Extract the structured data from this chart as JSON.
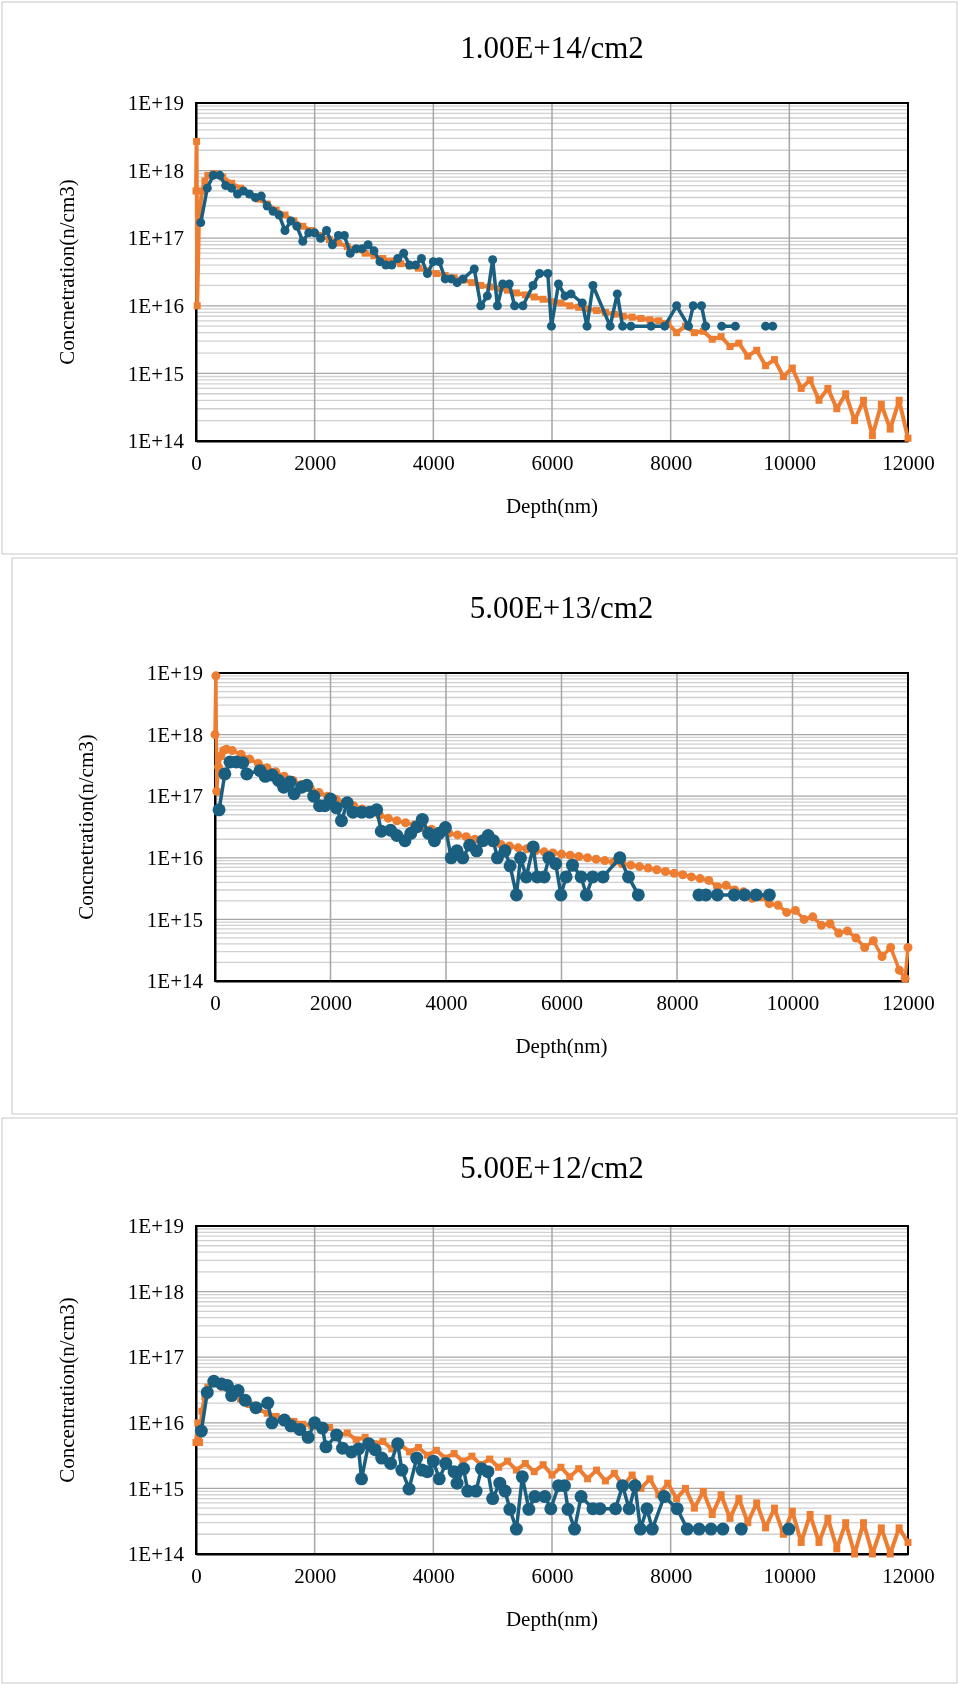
{
  "chart_data": [
    {
      "type": "line",
      "title": "1.00E+14/cm2",
      "xlabel": "Depth(nm)",
      "ylabel": "Concnetration(n/cm3)",
      "log": true,
      "grid": true,
      "xlim": [
        0,
        12000
      ],
      "xticks": [
        0,
        2000,
        4000,
        6000,
        8000,
        10000,
        12000
      ],
      "ylim": [
        100000000000000.0,
        1e+19
      ],
      "yticks": [
        {
          "value": 100000000000000.0,
          "label": "1E+14"
        },
        {
          "value": 1000000000000000.0,
          "label": "1E+15"
        },
        {
          "value": 1e+16,
          "label": "1E+16"
        },
        {
          "value": 1e+17,
          "label": "1E+17"
        },
        {
          "value": 1e+18,
          "label": "1E+18"
        },
        {
          "value": 1e+19,
          "label": "1E+19"
        }
      ],
      "series": [
        {
          "color": "#ed7d31",
          "marker": "square",
          "x": [
            0,
            10,
            20,
            50,
            100,
            150,
            200,
            300,
            450,
            600,
            750,
            900,
            1050,
            1200,
            1350,
            1500,
            1650,
            1800,
            1950,
            2100,
            2250,
            2400,
            2550,
            2700,
            2850,
            3000,
            3150,
            3300,
            3450,
            3600,
            3750,
            3900,
            4050,
            4200,
            4350,
            4500,
            4650,
            4800,
            4950,
            5100,
            5250,
            5400,
            5550,
            5700,
            5850,
            6000,
            6150,
            6300,
            6450,
            6600,
            6750,
            6900,
            7050,
            7200,
            7350,
            7500,
            7650,
            7800,
            7950,
            8100,
            8250,
            8400,
            8550,
            8700,
            8850,
            9000,
            9150,
            9300,
            9450,
            9600,
            9750,
            9900,
            10050,
            10200,
            10350,
            10500,
            10650,
            10800,
            10950,
            11100,
            11250,
            11400,
            11550,
            11700,
            11850,
            12000
          ],
          "values": [
            5e+17,
            2.7e+18,
            1e+16,
            2e+17,
            5e+17,
            7e+17,
            8.5e+17,
            9e+17,
            8e+17,
            6.5e+17,
            5.5e+17,
            4.5e+17,
            3.8e+17,
            3.2e+17,
            2.6e+17,
            2.2e+17,
            1.8e+17,
            1.5e+17,
            1.3e+17,
            1.1e+17,
            9.5e+16,
            8.5e+16,
            7.5e+16,
            6.8e+16,
            6e+16,
            5.5e+16,
            5e+16,
            4.6e+16,
            4.2e+16,
            3.9e+16,
            3.6e+16,
            3.3e+16,
            3e+16,
            2.8e+16,
            2.6e+16,
            2.4e+16,
            2.2e+16,
            2e+16,
            1.9e+16,
            1.8e+16,
            1.7e+16,
            1.55e+16,
            1.45e+16,
            1.35e+16,
            1.25e+16,
            1.15e+16,
            1.1e+16,
            1e+16,
            9500000000000000.0,
            9000000000000000.0,
            8500000000000000.0,
            8000000000000000.0,
            7500000000000000.0,
            7000000000000000.0,
            6800000000000000.0,
            6500000000000000.0,
            6200000000000000.0,
            6000000000000000.0,
            5500000000000000.0,
            4000000000000000.0,
            5000000000000000.0,
            4000000000000000.0,
            4200000000000000.0,
            3200000000000000.0,
            3500000000000000.0,
            2500000000000000.0,
            2800000000000000.0,
            1800000000000000.0,
            2200000000000000.0,
            1300000000000000.0,
            1600000000000000.0,
            900000000000000.0,
            1200000000000000.0,
            600000000000000.0,
            800000000000000.0,
            400000000000000.0,
            600000000000000.0,
            300000000000000.0,
            500000000000000.0,
            200000000000000.0,
            400000000000000.0,
            120000000000000.0,
            350000000000000.0,
            150000000000000.0,
            400000000000000.0,
            110000000000000.0
          ]
        },
        {
          "color": "#1a5f80",
          "marker": "circle",
          "x": [
            80,
            190,
            290,
            400,
            500,
            600,
            700,
            800,
            900,
            1000,
            1100,
            1200,
            1300,
            1400,
            1500,
            1600,
            1700,
            1800,
            1900,
            2000,
            2100,
            2200,
            2300,
            2400,
            2500,
            2600,
            2700,
            2800,
            2900,
            3000,
            3100,
            3200,
            3300,
            3400,
            3500,
            3600,
            3700,
            3800,
            3900,
            4000,
            4100,
            4200,
            4300,
            4400,
            4500,
            4690,
            4800,
            4910,
            5000,
            5080,
            5170,
            5280,
            5370,
            5510,
            5680,
            5790,
            5930,
            5990,
            6110,
            6220,
            6320,
            6510,
            6590,
            6690,
            6980,
            7100,
            7190,
            7330,
            7670,
            7900,
            8100,
            8300,
            8380,
            8520,
            8590,
            8700,
            8860,
            9090,
            9300,
            9600,
            9720
          ],
          "values": [
            1.7e+17,
            5.5e+17,
            8.5e+17,
            8.5e+17,
            6e+17,
            5.5e+17,
            4.5e+17,
            5e+17,
            4.5e+17,
            4e+17,
            4.2e+17,
            3e+17,
            2.5e+17,
            2.2e+17,
            1.3e+17,
            1.8e+17,
            1.5e+17,
            9e+16,
            1.2e+17,
            1.2e+17,
            1e+17,
            1.3e+17,
            8e+16,
            1.1e+17,
            1.1e+17,
            6e+16,
            7e+16,
            7e+16,
            8e+16,
            6.5e+16,
            4.5e+16,
            4e+16,
            4e+16,
            5e+16,
            6e+16,
            4e+16,
            4e+16,
            5e+16,
            3e+16,
            4.5e+16,
            4.5e+16,
            2.5e+16,
            2.5e+16,
            2.2e+16,
            2.5e+16,
            3.5e+16,
            1e+16,
            1.4e+16,
            4.8e+16,
            1e+16,
            2.1e+16,
            2.1e+16,
            1e+16,
            1e+16,
            2e+16,
            3e+16,
            3e+16,
            5000000000000000.0,
            2.1e+16,
            1.4e+16,
            1.5e+16,
            1.1e+16,
            5000000000000000.0,
            2e+16,
            5000000000000000.0,
            1.5e+16,
            5000000000000000.0,
            5000000000000000.0,
            5000000000000000.0,
            5000000000000000.0,
            1e+16,
            5000000000000000.0,
            1e+16,
            1e+16,
            5000000000000000.0,
            null,
            5000000000000000.0,
            5000000000000000.0,
            null,
            5000000000000000.0,
            5000000000000000.0
          ]
        }
      ]
    },
    {
      "type": "line",
      "title": "5.00E+13/cm2",
      "xlabel": "Depth(nm)",
      "ylabel": "Concnetration(n/cm3)",
      "log": true,
      "grid": true,
      "xlim": [
        0,
        12000
      ],
      "xticks": [
        0,
        2000,
        4000,
        6000,
        8000,
        10000,
        12000
      ],
      "ylim": [
        100000000000000.0,
        1e+19
      ],
      "yticks": [
        {
          "value": 100000000000000.0,
          "label": "1E+14"
        },
        {
          "value": 1000000000000000.0,
          "label": "1E+15"
        },
        {
          "value": 1e+16,
          "label": "1E+16"
        },
        {
          "value": 1e+17,
          "label": "1E+17"
        },
        {
          "value": 1e+18,
          "label": "1E+18"
        },
        {
          "value": 1e+19,
          "label": "1E+19"
        }
      ],
      "series": [
        {
          "color": "#ed7d31",
          "marker": "circle",
          "x": [
            0,
            15,
            30,
            60,
            100,
            150,
            200,
            300,
            450,
            600,
            750,
            900,
            1050,
            1200,
            1350,
            1500,
            1650,
            1800,
            1950,
            2100,
            2250,
            2400,
            2550,
            2700,
            2850,
            3000,
            3150,
            3300,
            3450,
            3600,
            3750,
            3900,
            4050,
            4200,
            4350,
            4500,
            4650,
            4800,
            4950,
            5100,
            5250,
            5400,
            5550,
            5700,
            5850,
            6000,
            6150,
            6300,
            6450,
            6600,
            6750,
            6900,
            7050,
            7200,
            7350,
            7500,
            7650,
            7800,
            7950,
            8100,
            8250,
            8400,
            8550,
            8700,
            8850,
            9000,
            9150,
            9300,
            9450,
            9600,
            9750,
            9900,
            10050,
            10200,
            10350,
            10500,
            10650,
            10800,
            10950,
            11100,
            11250,
            11400,
            11550,
            11700,
            11850,
            11950,
            12000
          ],
          "values": [
            1e+18,
            9e+18,
            1.2e+17,
            3e+17,
            4.5e+17,
            5.5e+17,
            5.8e+17,
            5.5e+17,
            4.8e+17,
            4e+17,
            3.4e+17,
            2.9e+17,
            2.5e+17,
            2.1e+17,
            1.8e+17,
            1.55e+17,
            1.35e+17,
            1.15e+17,
            1e+17,
            8.8e+16,
            7.8e+16,
            7e+16,
            6.2e+16,
            5.5e+16,
            4.9e+16,
            4.4e+16,
            4e+16,
            3.7e+16,
            3.4e+16,
            3.1e+16,
            2.9e+16,
            2.7e+16,
            2.5e+16,
            2.35e+16,
            2.2e+16,
            2e+16,
            1.9e+16,
            1.75e+16,
            1.65e+16,
            1.55e+16,
            1.45e+16,
            1.4e+16,
            1.3e+16,
            1.25e+16,
            1.2e+16,
            1.15e+16,
            1.1e+16,
            1.05e+16,
            1e+16,
            9500000000000000.0,
            9000000000000000.0,
            8500000000000000.0,
            8000000000000000.0,
            7600000000000000.0,
            7200000000000000.0,
            6800000000000000.0,
            6400000000000000.0,
            6000000000000000.0,
            5600000000000000.0,
            5300000000000000.0,
            4900000000000000.0,
            4600000000000000.0,
            4300000000000000.0,
            3400000000000000.0,
            3600000000000000.0,
            3000000000000000.0,
            2800000000000000.0,
            2200000000000000.0,
            2300000000000000.0,
            1800000000000000.0,
            1700000000000000.0,
            1300000000000000.0,
            1400000000000000.0,
            1000000000000000.0,
            1100000000000000.0,
            800000000000000.0,
            850000000000000.0,
            600000000000000.0,
            650000000000000.0,
            500000000000000.0,
            350000000000000.0,
            450000000000000.0,
            250000000000000.0,
            350000000000000.0,
            150000000000000.0,
            110000000000000.0,
            350000000000000.0
          ]
        },
        {
          "color": "#1a5f80",
          "marker": "circle",
          "x": [
            70,
            170,
            260,
            370,
            480,
            550,
            780,
            870,
            990,
            1100,
            1190,
            1300,
            1370,
            1500,
            1590,
            1710,
            1810,
            1900,
            2000,
            2100,
            2190,
            2290,
            2390,
            2540,
            2680,
            2800,
            2880,
            3040,
            3150,
            3290,
            3390,
            3500,
            3590,
            3700,
            3800,
            3880,
            3990,
            4090,
            4190,
            4290,
            4410,
            4530,
            4640,
            4730,
            4820,
            4890,
            5020,
            5110,
            5220,
            5290,
            5390,
            5510,
            5580,
            5700,
            5780,
            5900,
            5990,
            6080,
            6190,
            6340,
            6430,
            6540,
            6720,
            7010,
            7160,
            7330,
            7800,
            8380,
            8500,
            8700,
            8990,
            9170,
            9370,
            9600
          ],
          "values": [
            6e+16,
            2.3e+17,
            3.6e+17,
            3.6e+17,
            3.5e+17,
            2.3e+17,
            2.6e+17,
            2.1e+17,
            2.2e+17,
            1.8e+17,
            1.4e+17,
            1.7e+17,
            1.1e+17,
            1.4e+17,
            1.5e+17,
            1e+17,
            7e+16,
            7e+16,
            9e+16,
            6.5e+16,
            4e+16,
            7.8e+16,
            5.5e+16,
            5.5e+16,
            5.5e+16,
            6e+16,
            2.7e+16,
            2.8e+16,
            2.3e+16,
            1.9e+16,
            2.5e+16,
            3.2e+16,
            4.2e+16,
            2.5e+16,
            1.9e+16,
            2.5e+16,
            3.1e+16,
            1e+16,
            1.3e+16,
            1e+16,
            1.6e+16,
            1.3e+16,
            1.9e+16,
            2.3e+16,
            1.9e+16,
            1e+16,
            1.3e+16,
            7400000000000000.0,
            2500000000000000.0,
            1e+16,
            4900000000000000.0,
            1.5e+16,
            4900000000000000.0,
            4900000000000000.0,
            1e+16,
            8000000000000000.0,
            2500000000000000.0,
            4900000000000000.0,
            7600000000000000.0,
            4900000000000000.0,
            2500000000000000.0,
            4900000000000000.0,
            4900000000000000.0,
            1e+16,
            4900000000000000.0,
            2500000000000000.0,
            null,
            2500000000000000.0,
            2500000000000000.0,
            2500000000000000.0,
            2500000000000000.0,
            2500000000000000.0,
            2500000000000000.0,
            2500000000000000.0
          ]
        }
      ]
    },
    {
      "type": "line",
      "title": "5.00E+12/cm2",
      "xlabel": "Depth(nm)",
      "ylabel": "Concentration(n/cm3)",
      "log": true,
      "grid": true,
      "xlim": [
        0,
        12000
      ],
      "xticks": [
        0,
        2000,
        4000,
        6000,
        8000,
        10000,
        12000
      ],
      "ylim": [
        100000000000000.0,
        1e+19
      ],
      "yticks": [
        {
          "value": 100000000000000.0,
          "label": "1E+14"
        },
        {
          "value": 1000000000000000.0,
          "label": "1E+15"
        },
        {
          "value": 1e+16,
          "label": "1E+16"
        },
        {
          "value": 1e+17,
          "label": "1E+17"
        },
        {
          "value": 1e+18,
          "label": "1E+18"
        },
        {
          "value": 1e+19,
          "label": "1E+19"
        }
      ],
      "series": [
        {
          "color": "#ed7d31",
          "marker": "square",
          "x": [
            0,
            30,
            60,
            100,
            150,
            200,
            300,
            450,
            600,
            750,
            900,
            1050,
            1200,
            1350,
            1500,
            1650,
            1800,
            1950,
            2100,
            2250,
            2400,
            2550,
            2700,
            2850,
            3000,
            3150,
            3300,
            3450,
            3600,
            3750,
            3900,
            4050,
            4200,
            4350,
            4500,
            4650,
            4800,
            4950,
            5100,
            5250,
            5400,
            5550,
            5700,
            5850,
            6000,
            6150,
            6300,
            6450,
            6600,
            6750,
            6900,
            7050,
            7200,
            7350,
            7500,
            7650,
            7800,
            7950,
            8100,
            8250,
            8400,
            8550,
            8700,
            8850,
            9000,
            9150,
            9300,
            9450,
            9600,
            9750,
            9900,
            10050,
            10200,
            10350,
            10500,
            10650,
            10800,
            10950,
            11100,
            11250,
            11400,
            11550,
            11700,
            11850,
            12000
          ],
          "values": [
            5000000000000000.0,
            1e+16,
            5000000000000000.0,
            1.5e+16,
            2.5e+16,
            3.5e+16,
            4e+16,
            3.5e+16,
            2.8e+16,
            2.3e+16,
            1.9e+16,
            1.6e+16,
            1.4e+16,
            1.25e+16,
            1.15e+16,
            1.05e+16,
            9500000000000000.0,
            9000000000000000.0,
            8000000000000000.0,
            8500000000000000.0,
            6500000000000000.0,
            7000000000000000.0,
            5500000000000000.0,
            6000000000000000.0,
            4800000000000000.0,
            5200000000000000.0,
            4000000000000000.0,
            4600000000000000.0,
            3600000000000000.0,
            4200000000000000.0,
            3200000000000000.0,
            3800000000000000.0,
            2900000000000000.0,
            3400000000000000.0,
            2600000000000000.0,
            3100000000000000.0,
            2300000000000000.0,
            2800000000000000.0,
            2100000000000000.0,
            2600000000000000.0,
            1900000000000000.0,
            2400000000000000.0,
            1800000000000000.0,
            2300000000000000.0,
            1600000000000000.0,
            2100000000000000.0,
            1500000000000000.0,
            2000000000000000.0,
            1400000000000000.0,
            1900000000000000.0,
            1300000000000000.0,
            1700000000000000.0,
            1100000000000000.0,
            1600000000000000.0,
            1000000000000000.0,
            1400000000000000.0,
            800000000000000.0,
            1200000000000000.0,
            700000000000000.0,
            1000000000000000.0,
            500000000000000.0,
            900000000000000.0,
            400000000000000.0,
            800000000000000.0,
            350000000000000.0,
            700000000000000.0,
            300000000000000.0,
            600000000000000.0,
            250000000000000.0,
            500000000000000.0,
            200000000000000.0,
            450000000000000.0,
            150000000000000.0,
            400000000000000.0,
            150000000000000.0,
            350000000000000.0,
            120000000000000.0,
            300000000000000.0,
            100000000000000.0,
            300000000000000.0,
            100000000000000.0,
            250000000000000.0,
            100000000000000.0,
            250000000000000.0,
            150000000000000.0
          ]
        },
        {
          "color": "#1a5f80",
          "marker": "circle",
          "x": [
            90,
            190,
            300,
            430,
            530,
            600,
            710,
            830,
            1010,
            1210,
            1280,
            1490,
            1600,
            1750,
            1890,
            2000,
            2130,
            2190,
            2370,
            2470,
            2620,
            2740,
            2790,
            2910,
            3020,
            3130,
            3280,
            3400,
            3470,
            3590,
            3720,
            3810,
            3900,
            4000,
            4100,
            4210,
            4350,
            4400,
            4510,
            4580,
            4720,
            4810,
            4920,
            5000,
            5120,
            5210,
            5290,
            5400,
            5500,
            5610,
            5710,
            5880,
            5980,
            6110,
            6210,
            6270,
            6380,
            6490,
            6690,
            6810,
            7070,
            7190,
            7300,
            7400,
            7490,
            7600,
            7690,
            7890,
            8110,
            8280,
            8480,
            8680,
            8880,
            9040,
            9190,
            9600,
            9990
          ],
          "values": [
            7500000000000000.0,
            2.9e+16,
            4.3e+16,
            3.9e+16,
            3.7e+16,
            2.6e+16,
            3.1e+16,
            2.2e+16,
            1.7e+16,
            2e+16,
            1e+16,
            1.1e+16,
            9000000000000000.0,
            7900000000000000.0,
            6000000000000000.0,
            1e+16,
            8300000000000000.0,
            4300000000000000.0,
            6500000000000000.0,
            4100000000000000.0,
            3600000000000000.0,
            4000000000000000.0,
            1400000000000000.0,
            4800000000000000.0,
            3900000000000000.0,
            2900000000000000.0,
            2400000000000000.0,
            4800000000000000.0,
            1900000000000000.0,
            980000000000000.0,
            2900000000000000.0,
            1900000000000000.0,
            1800000000000000.0,
            2600000000000000.0,
            1400000000000000.0,
            2400000000000000.0,
            1800000000000000.0,
            1200000000000000.0,
            2000000000000000.0,
            910000000000000.0,
            910000000000000.0,
            2000000000000000.0,
            1800000000000000.0,
            700000000000000.0,
            1200000000000000.0,
            910000000000000.0,
            480000000000000.0,
            240000000000000.0,
            1500000000000000.0,
            480000000000000.0,
            750000000000000.0,
            750000000000000.0,
            490000000000000.0,
            1100000000000000.0,
            1100000000000000.0,
            480000000000000.0,
            240000000000000.0,
            750000000000000.0,
            490000000000000.0,
            490000000000000.0,
            490000000000000.0,
            1100000000000000.0,
            490000000000000.0,
            1100000000000000.0,
            240000000000000.0,
            490000000000000.0,
            240000000000000.0,
            750000000000000.0,
            490000000000000.0,
            240000000000000.0,
            240000000000000.0,
            240000000000000.0,
            240000000000000.0,
            null,
            240000000000000.0,
            null,
            240000000000000.0
          ]
        }
      ]
    }
  ]
}
